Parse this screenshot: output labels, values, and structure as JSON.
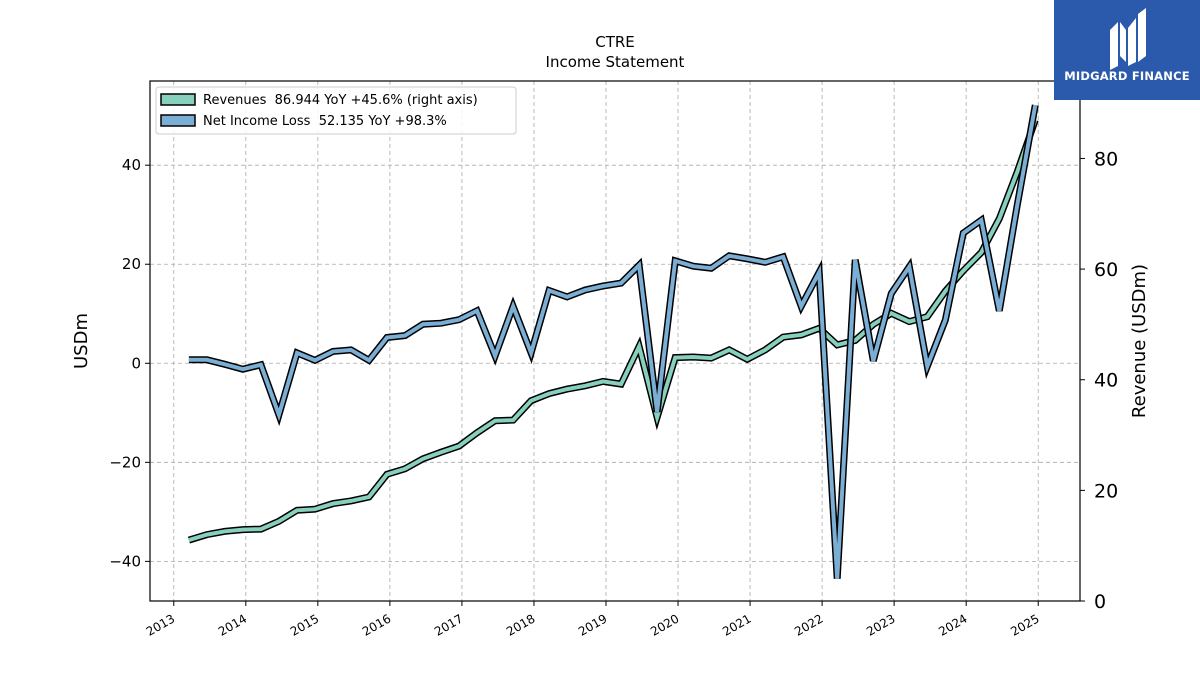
{
  "brand": {
    "name": "MIDGARD FINANCE",
    "color": "#2b5aad"
  },
  "chart_data": {
    "type": "line",
    "title": "CTRE",
    "subtitle": "Income Statement",
    "ylabel_left": "USDm",
    "ylabel_right": "Revenue (USDm)",
    "ylim_left": [
      -48,
      57
    ],
    "ylim_right": [
      0,
      94
    ],
    "xlim": [
      2012.67,
      2025.58
    ],
    "x_ticks": [
      "2013",
      "2014",
      "2015",
      "2016",
      "2017",
      "2018",
      "2019",
      "2020",
      "2021",
      "2022",
      "2023",
      "2024",
      "2025"
    ],
    "y_ticks_left": [
      "40",
      "20",
      "0",
      "−20",
      "−40"
    ],
    "y_ticks_right": [
      "80",
      "60",
      "40",
      "20",
      "0"
    ],
    "grid": true,
    "legend_position": "top-left",
    "series": [
      {
        "name": "Revenues  86.944 YoY +45.6% (right axis)",
        "axis": "right",
        "color": "#86d0bd",
        "points": [
          [
            2013.21,
            11.0
          ],
          [
            2013.46,
            12.0
          ],
          [
            2013.71,
            12.6
          ],
          [
            2013.96,
            12.9
          ],
          [
            2014.21,
            13.0
          ],
          [
            2014.46,
            14.4
          ],
          [
            2014.71,
            16.4
          ],
          [
            2014.96,
            16.6
          ],
          [
            2015.21,
            17.6
          ],
          [
            2015.46,
            18.1
          ],
          [
            2015.71,
            18.8
          ],
          [
            2015.96,
            22.9
          ],
          [
            2016.21,
            23.9
          ],
          [
            2016.46,
            25.7
          ],
          [
            2016.71,
            26.9
          ],
          [
            2016.96,
            28.0
          ],
          [
            2017.21,
            30.4
          ],
          [
            2017.46,
            32.6
          ],
          [
            2017.71,
            32.7
          ],
          [
            2017.96,
            36.2
          ],
          [
            2018.21,
            37.5
          ],
          [
            2018.46,
            38.3
          ],
          [
            2018.71,
            38.9
          ],
          [
            2018.96,
            39.7
          ],
          [
            2019.21,
            39.2
          ],
          [
            2019.46,
            46.0
          ],
          [
            2019.71,
            33.2
          ],
          [
            2019.96,
            44.0
          ],
          [
            2020.21,
            44.1
          ],
          [
            2020.46,
            43.9
          ],
          [
            2020.71,
            45.4
          ],
          [
            2020.96,
            43.7
          ],
          [
            2021.21,
            45.4
          ],
          [
            2021.46,
            47.7
          ],
          [
            2021.71,
            48.1
          ],
          [
            2021.96,
            49.3
          ],
          [
            2022.21,
            46.3
          ],
          [
            2022.46,
            47.1
          ],
          [
            2022.71,
            50.0
          ],
          [
            2022.96,
            52.0
          ],
          [
            2023.21,
            50.5
          ],
          [
            2023.46,
            51.4
          ],
          [
            2023.71,
            56.0
          ],
          [
            2023.96,
            59.7
          ],
          [
            2024.21,
            63.0
          ],
          [
            2024.46,
            69.1
          ],
          [
            2024.71,
            77.6
          ],
          [
            2024.96,
            86.944
          ]
        ]
      },
      {
        "name": "Net Income Loss  52.135 YoY +98.3%",
        "axis": "left",
        "color": "#7aaed4",
        "points": [
          [
            2013.21,
            0.7
          ],
          [
            2013.46,
            0.7
          ],
          [
            2013.71,
            -0.2
          ],
          [
            2013.96,
            -1.2
          ],
          [
            2014.21,
            -0.3
          ],
          [
            2014.46,
            -10.4
          ],
          [
            2014.71,
            2.1
          ],
          [
            2014.96,
            0.6
          ],
          [
            2015.21,
            2.4
          ],
          [
            2015.46,
            2.7
          ],
          [
            2015.71,
            0.6
          ],
          [
            2015.96,
            5.2
          ],
          [
            2016.21,
            5.6
          ],
          [
            2016.46,
            7.9
          ],
          [
            2016.71,
            8.1
          ],
          [
            2016.96,
            8.8
          ],
          [
            2017.21,
            10.6
          ],
          [
            2017.46,
            1.5
          ],
          [
            2017.71,
            11.5
          ],
          [
            2017.96,
            2.1
          ],
          [
            2018.21,
            14.7
          ],
          [
            2018.46,
            13.4
          ],
          [
            2018.71,
            14.8
          ],
          [
            2018.96,
            15.6
          ],
          [
            2019.21,
            16.2
          ],
          [
            2019.46,
            19.8
          ],
          [
            2019.71,
            -9.8
          ],
          [
            2019.96,
            20.7
          ],
          [
            2020.21,
            19.6
          ],
          [
            2020.46,
            19.2
          ],
          [
            2020.71,
            21.7
          ],
          [
            2020.96,
            21.1
          ],
          [
            2021.21,
            20.4
          ],
          [
            2021.46,
            21.5
          ],
          [
            2021.71,
            11.5
          ],
          [
            2021.96,
            18.4
          ],
          [
            2022.21,
            -43.5
          ],
          [
            2022.46,
            20.9
          ],
          [
            2022.71,
            0.5
          ],
          [
            2022.96,
            14.1
          ],
          [
            2023.21,
            19.5
          ],
          [
            2023.46,
            -0.6
          ],
          [
            2023.71,
            8.7
          ],
          [
            2023.96,
            26.3
          ],
          [
            2024.21,
            28.9
          ],
          [
            2024.46,
            10.6
          ],
          [
            2024.71,
            32.0
          ],
          [
            2024.96,
            52.135
          ]
        ]
      }
    ]
  }
}
